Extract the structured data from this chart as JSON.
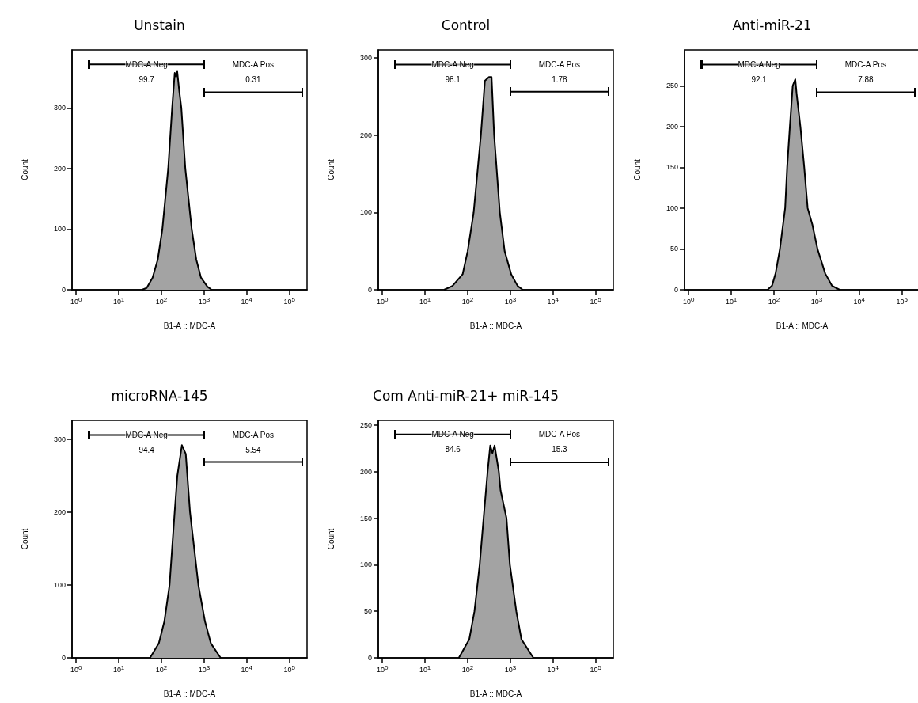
{
  "chart_data": [
    {
      "type": "area",
      "title": "Unstain",
      "xlabel": "B1-A :: MDC-A",
      "ylabel": "Count",
      "log": "x",
      "xlim": [
        0.8,
        260000
      ],
      "xticks": [
        {
          "value": 1,
          "label": "10$^{0}$"
        },
        {
          "value": 10,
          "label": "10$^{1}$"
        },
        {
          "value": 100,
          "label": "10$^{2}$"
        },
        {
          "value": 1000,
          "label": "10$^{3}$"
        },
        {
          "value": 10000,
          "label": "10$^{4}$"
        },
        {
          "value": 100000,
          "label": "10$^{5}$"
        }
      ],
      "ylim": [
        0,
        396
      ],
      "yticks": [
        0,
        100,
        200,
        300
      ],
      "grid": false,
      "legend": false,
      "series": [
        {
          "color": "#a3a3a3",
          "x": [
            35,
            45,
            62,
            82,
            105,
            144,
            178,
            205,
            220,
            235,
            260,
            293,
            363,
            513,
            656,
            846,
            1200,
            1500
          ],
          "values": [
            0,
            3,
            20,
            50,
            100,
            200,
            300,
            358,
            352,
            360,
            330,
            300,
            200,
            100,
            50,
            20,
            5,
            0
          ]
        },
        {
          "type": "line",
          "name": "MDC-A Neg",
          "color": "#000000",
          "x": [
            2,
            1000
          ],
          "values": [
            372,
            372
          ]
        },
        {
          "type": "line",
          "name": "MDC-A Pos",
          "color": "#000000",
          "x": [
            1000,
            200000
          ],
          "values": [
            326,
            326
          ]
        }
      ],
      "annotations": [
        "99.7",
        "0.31"
      ]
    },
    {
      "type": "area",
      "title": "Control",
      "xlabel": "B1-A :: MDC-A",
      "ylabel": "Count",
      "log": "x",
      "xlim": [
        0.8,
        260000
      ],
      "xticks": [
        {
          "value": 1,
          "label": "10$^{0}$"
        },
        {
          "value": 10,
          "label": "10$^{1}$"
        },
        {
          "value": 100,
          "label": "10$^{2}$"
        },
        {
          "value": 1000,
          "label": "10$^{3}$"
        },
        {
          "value": 10000,
          "label": "10$^{4}$"
        },
        {
          "value": 100000,
          "label": "10$^{5}$"
        }
      ],
      "ylim": [
        0,
        310
      ],
      "yticks": [
        0,
        100,
        200,
        300
      ],
      "grid": false,
      "legend": false,
      "series": [
        {
          "color": "#a3a3a3",
          "x": [
            28,
            44,
            76,
            100,
            138,
            204,
            253,
            316,
            363,
            417,
            567,
            735,
            1050,
            1480,
            1950
          ],
          "values": [
            0,
            5,
            20,
            50,
            100,
            200,
            270,
            275,
            275,
            200,
            100,
            50,
            20,
            5,
            0
          ]
        },
        {
          "type": "line",
          "name": "MDC-A Neg",
          "color": "#000000",
          "x": [
            2,
            1000
          ],
          "values": [
            291,
            291
          ]
        },
        {
          "type": "line",
          "name": "MDC-A Pos",
          "color": "#000000",
          "x": [
            1000,
            200000
          ],
          "values": [
            256,
            256
          ]
        }
      ],
      "annotations": [
        "98.1",
        "1.78"
      ]
    },
    {
      "type": "area",
      "title": "Anti-miR-21",
      "xlabel": "B1-A :: MDC-A",
      "ylabel": "Count",
      "log": "x",
      "xlim": [
        0.8,
        260000
      ],
      "xticks": [
        {
          "value": 1,
          "label": "10$^{0}$"
        },
        {
          "value": 10,
          "label": "10$^{1}$"
        },
        {
          "value": 100,
          "label": "10$^{2}$"
        },
        {
          "value": 1000,
          "label": "10$^{3}$"
        },
        {
          "value": 10000,
          "label": "10$^{4}$"
        },
        {
          "value": 100000,
          "label": "10$^{5}$"
        }
      ],
      "ylim": [
        0,
        294
      ],
      "yticks": [
        0,
        50,
        100,
        150,
        200,
        250
      ],
      "grid": false,
      "legend": false,
      "series": [
        {
          "color": "#a3a3a3",
          "x": [
            71,
            90,
            109,
            138,
            183,
            204,
            236,
            275,
            316,
            340,
            417,
            513,
            617,
            794,
            1050,
            1590,
            2290,
            3470
          ],
          "values": [
            0,
            5,
            20,
            50,
            100,
            150,
            200,
            250,
            258,
            240,
            200,
            150,
            100,
            80,
            50,
            20,
            5,
            0
          ]
        },
        {
          "type": "line",
          "name": "MDC-A Neg",
          "color": "#000000",
          "x": [
            2,
            1000
          ],
          "values": [
            276,
            276
          ]
        },
        {
          "type": "line",
          "name": "MDC-A Pos",
          "color": "#000000",
          "x": [
            1000,
            200000
          ],
          "values": [
            242,
            242
          ]
        }
      ],
      "annotations": [
        "92.1",
        "7.88"
      ]
    },
    {
      "type": "area",
      "title": "microRNA-145",
      "xlabel": "B1-A :: MDC-A",
      "ylabel": "Count",
      "log": "x",
      "xlim": [
        0.8,
        260000
      ],
      "xticks": [
        {
          "value": 1,
          "label": "10$^{0}$"
        },
        {
          "value": 10,
          "label": "10$^{1}$"
        },
        {
          "value": 100,
          "label": "10$^{2}$"
        },
        {
          "value": 1000,
          "label": "10$^{3}$"
        },
        {
          "value": 10000,
          "label": "10$^{4}$"
        },
        {
          "value": 100000,
          "label": "10$^{5}$"
        }
      ],
      "ylim": [
        0,
        326
      ],
      "yticks": [
        0,
        100,
        200,
        300
      ],
      "grid": false,
      "legend": false,
      "series": [
        {
          "color": "#a3a3a3",
          "x": [
            54,
            87,
            117,
            155,
            204,
            236,
            302,
            372,
            468,
            735,
            1050,
            1440,
            2440
          ],
          "values": [
            0,
            20,
            50,
            100,
            200,
            250,
            292,
            280,
            200,
            100,
            50,
            20,
            0
          ]
        },
        {
          "type": "line",
          "name": "MDC-A Neg",
          "color": "#000000",
          "x": [
            2,
            1000
          ],
          "values": [
            306,
            306
          ]
        },
        {
          "type": "line",
          "name": "MDC-A Pos",
          "color": "#000000",
          "x": [
            1000,
            200000
          ],
          "values": [
            269,
            269
          ]
        }
      ],
      "annotations": [
        "94.4",
        "5.54"
      ]
    },
    {
      "type": "area",
      "title": "Com Anti-miR-21+ miR-145",
      "xlabel": "B1-A :: MDC-A",
      "ylabel": "Count",
      "log": "x",
      "xlim": [
        0.8,
        260000
      ],
      "xticks": [
        {
          "value": 1,
          "label": "10$^{0}$"
        },
        {
          "value": 10,
          "label": "10$^{1}$"
        },
        {
          "value": 100,
          "label": "10$^{2}$"
        },
        {
          "value": 1000,
          "label": "10$^{3}$"
        },
        {
          "value": 10000,
          "label": "10$^{4}$"
        },
        {
          "value": 100000,
          "label": "10$^{5}$"
        }
      ],
      "ylim": [
        0,
        255
      ],
      "yticks": [
        0,
        50,
        100,
        150,
        200,
        250
      ],
      "grid": false,
      "legend": false,
      "series": [
        {
          "color": "#a3a3a3",
          "x": [
            62,
            109,
            144,
            191,
            236,
            293,
            338,
            380,
            427,
            537,
            589,
            813,
            977,
            1380,
            1820,
            3470
          ],
          "values": [
            0,
            20,
            50,
            100,
            150,
            200,
            228,
            220,
            228,
            200,
            180,
            150,
            100,
            50,
            20,
            0
          ]
        },
        {
          "type": "line",
          "name": "MDC-A Neg",
          "color": "#000000",
          "x": [
            2,
            1000
          ],
          "values": [
            240,
            240
          ]
        },
        {
          "type": "line",
          "name": "MDC-A Pos",
          "color": "#000000",
          "x": [
            1000,
            200000
          ],
          "values": [
            210,
            210
          ]
        }
      ],
      "annotations": [
        "84.6",
        "15.3"
      ]
    }
  ]
}
